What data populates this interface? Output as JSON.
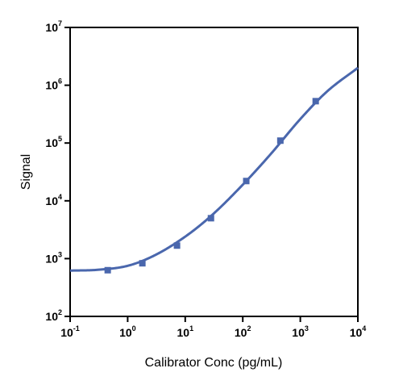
{
  "chart_data": {
    "type": "scatter",
    "title": "",
    "xlabel": "Calibrator Conc (pg/mL)",
    "ylabel": "Signal",
    "x_scale": "log",
    "y_scale": "log",
    "xlim": [
      0.1,
      10000
    ],
    "ylim": [
      100,
      10000000
    ],
    "x_ticks": [
      {
        "base": "10",
        "exp": "-1"
      },
      {
        "base": "10",
        "exp": "0"
      },
      {
        "base": "10",
        "exp": "1"
      },
      {
        "base": "10",
        "exp": "2"
      },
      {
        "base": "10",
        "exp": "3"
      },
      {
        "base": "10",
        "exp": "4"
      }
    ],
    "y_ticks": [
      {
        "base": "10",
        "exp": "2"
      },
      {
        "base": "10",
        "exp": "3"
      },
      {
        "base": "10",
        "exp": "4"
      },
      {
        "base": "10",
        "exp": "5"
      },
      {
        "base": "10",
        "exp": "6"
      },
      {
        "base": "10",
        "exp": "7"
      }
    ],
    "grid": false,
    "legend": "none",
    "color": "#4a67ad",
    "series": [
      {
        "marker": "square",
        "x": [
          0.45,
          1.8,
          7.2,
          28,
          115,
          450,
          1850
        ],
        "y": [
          630,
          830,
          1680,
          5000,
          22000,
          110000,
          530000
        ]
      }
    ],
    "fit_curve": {
      "model": "4PL",
      "x": [
        0.1,
        0.3,
        1,
        3,
        10,
        30,
        100,
        300,
        1000,
        3000,
        10000
      ],
      "y": [
        620,
        640,
        750,
        1150,
        2400,
        5800,
        19000,
        63000,
        260000,
        800000,
        2000000
      ]
    }
  }
}
